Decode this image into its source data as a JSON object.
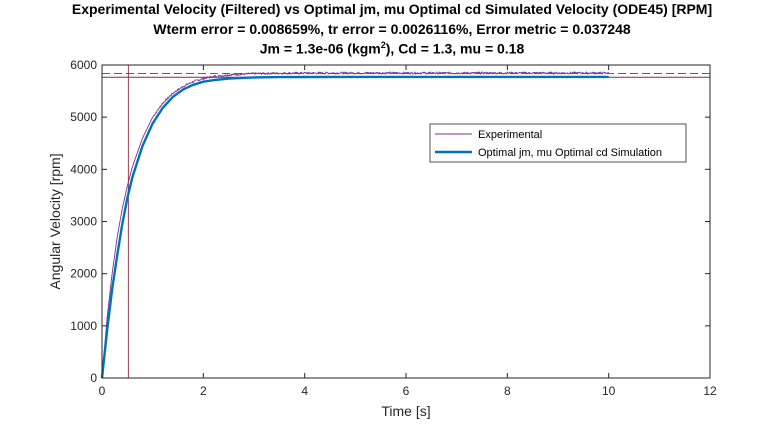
{
  "chart_data": {
    "type": "line",
    "title_lines": [
      "Experimental Velocity (Filtered) vs Optimal jm, mu Optimal cd Simulated Velocity (ODE45) [RPM]",
      "Wterm error = 0.008659%, tr error = 0.0026116%, Error metric = 0.037248"
    ],
    "title3": {
      "prefix": "Jm = 1.3e-06 (kgm",
      "sup": "2",
      "suffix": "), Cd = 1.3, mu = 0.18"
    },
    "xlabel": "Time [s]",
    "ylabel": "Angular Velocity [rpm]",
    "xlim": [
      0,
      12
    ],
    "ylim": [
      0,
      6000
    ],
    "xticks": [
      0,
      2,
      4,
      6,
      8,
      10,
      12
    ],
    "yticks": [
      0,
      1000,
      2000,
      3000,
      4000,
      5000,
      6000
    ],
    "grid": false,
    "legend_position": "upper-right-inside",
    "series": [
      {
        "name": "Experimental",
        "color": "#7e2f8e",
        "style": "thin-noisy",
        "x": [
          0,
          0.1,
          0.2,
          0.3,
          0.4,
          0.5,
          0.6,
          0.8,
          1.0,
          1.2,
          1.4,
          1.6,
          1.8,
          2.0,
          2.2,
          2.5,
          3.0,
          3.5,
          4.0,
          5.0,
          6.0,
          7.0,
          8.0,
          9.0,
          10.0
        ],
        "y": [
          0,
          1150,
          2000,
          2700,
          3250,
          3680,
          4050,
          4600,
          5000,
          5270,
          5460,
          5590,
          5680,
          5740,
          5780,
          5810,
          5835,
          5843,
          5846,
          5847,
          5847,
          5847,
          5847,
          5847,
          5847
        ]
      },
      {
        "name": "Optimal jm, mu Optimal cd Simulation",
        "color": "#0072bd",
        "style": "thick",
        "x": [
          0,
          0.1,
          0.2,
          0.3,
          0.4,
          0.5,
          0.6,
          0.8,
          1.0,
          1.2,
          1.4,
          1.6,
          1.8,
          2.0,
          2.2,
          2.5,
          3.0,
          3.5,
          4.0,
          5.0,
          6.0,
          7.0,
          8.0,
          9.0,
          10.0
        ],
        "y": [
          0,
          900,
          1700,
          2350,
          2950,
          3450,
          3850,
          4450,
          4880,
          5180,
          5390,
          5530,
          5620,
          5680,
          5710,
          5740,
          5762,
          5768,
          5770,
          5771,
          5771,
          5771,
          5771,
          5771,
          5771
        ]
      }
    ],
    "reference_lines": {
      "vertical_x": 0.52,
      "horizontal_upper_dashed": 5838,
      "horizontal_lower_solid": 5765,
      "color": "#8c2a3a"
    }
  }
}
